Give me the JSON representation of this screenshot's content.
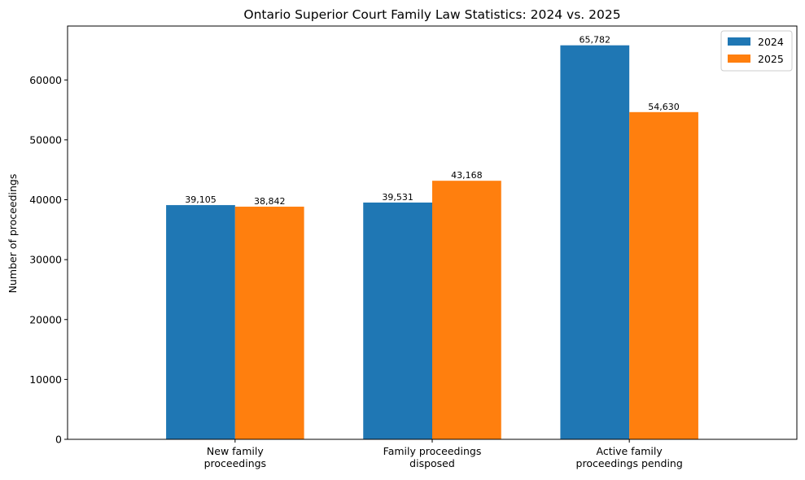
{
  "chart_data": {
    "type": "bar",
    "title": "Ontario Superior Court Family Law Statistics: 2024 vs. 2025",
    "xlabel": "",
    "ylabel": "Number of proceedings",
    "categories": [
      [
        "New family",
        "proceedings"
      ],
      [
        "Family proceedings",
        "disposed"
      ],
      [
        "Active family",
        "proceedings pending"
      ]
    ],
    "series": [
      {
        "name": "2024",
        "color": "#1f77b4",
        "values": [
          39105,
          39531,
          65782
        ],
        "labels": [
          "39,105",
          "39,531",
          "65,782"
        ]
      },
      {
        "name": "2025",
        "color": "#ff7f0e",
        "values": [
          38842,
          43168,
          54630
        ],
        "labels": [
          "38,842",
          "43,168",
          "54,630"
        ]
      }
    ],
    "ylim": [
      0,
      69000
    ],
    "yticks": [
      0,
      10000,
      20000,
      30000,
      40000,
      50000,
      60000
    ],
    "grid": false,
    "legend": "top-right"
  }
}
